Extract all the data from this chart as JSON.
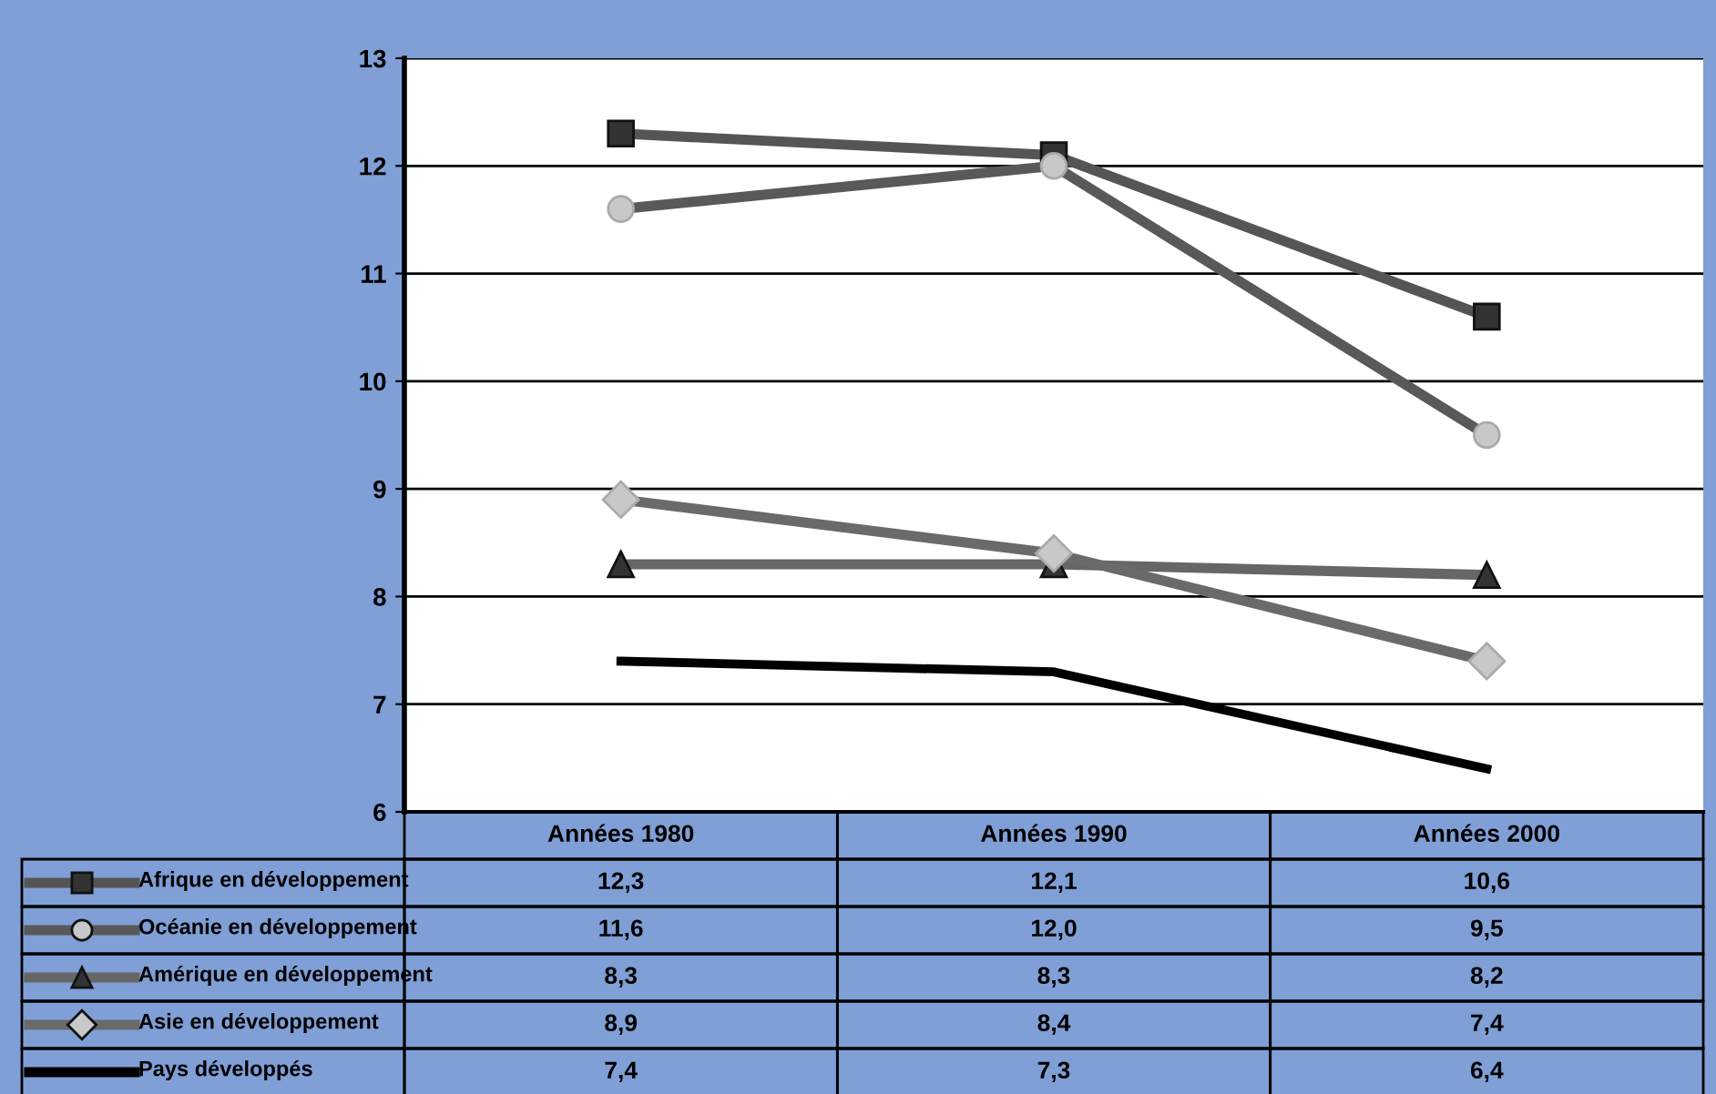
{
  "chart_data": {
    "type": "line",
    "categories": [
      "Années 1980",
      "Années 1990",
      "Années 2000"
    ],
    "ylim": [
      6,
      13
    ],
    "yticks": [
      6,
      7,
      8,
      9,
      10,
      11,
      12,
      13
    ],
    "grid": "y",
    "legend": "bottom",
    "series": [
      {
        "name": "Afrique en développement",
        "color": "#555555",
        "marker": "square",
        "values": [
          12.3,
          12.1,
          10.6
        ],
        "value_labels": [
          "12,3",
          "12,1",
          "10,6"
        ]
      },
      {
        "name": "Océanie en développement",
        "color": "#595959",
        "marker": "circle",
        "values": [
          11.6,
          12.0,
          9.5
        ],
        "value_labels": [
          "11,6",
          "12,0",
          "9,5"
        ]
      },
      {
        "name": "Amérique en développement",
        "color": "#666666",
        "marker": "triangle",
        "values": [
          8.3,
          8.3,
          8.2
        ],
        "value_labels": [
          "8,3",
          "8,3",
          "8,2"
        ]
      },
      {
        "name": "Asie en développement",
        "color": "#6a6a6a",
        "marker": "diamond",
        "values": [
          8.9,
          8.4,
          7.4
        ],
        "value_labels": [
          "8,9",
          "8,4",
          "7,4"
        ]
      },
      {
        "name": "Pays développés",
        "color": "#000000",
        "marker": "none",
        "values": [
          7.4,
          7.3,
          6.4
        ],
        "value_labels": [
          "7,4",
          "7,3",
          "6,4"
        ]
      }
    ]
  }
}
